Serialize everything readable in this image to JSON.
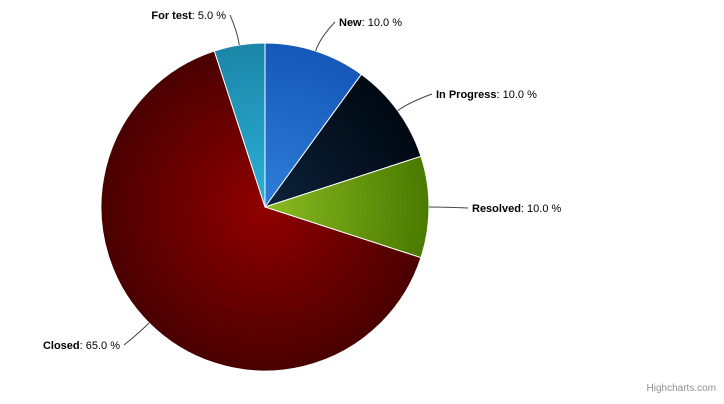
{
  "chart_data": {
    "type": "pie",
    "title": "",
    "slices": [
      {
        "name": "New",
        "value": 10.0,
        "label_value": "10.0 %",
        "color": "#2f7ed8",
        "color_dark": "#1658b8",
        "label_side": "right"
      },
      {
        "name": "In Progress",
        "value": 10.0,
        "label_value": "10.0 %",
        "color": "#0d233a",
        "color_dark": "#000812",
        "label_side": "right"
      },
      {
        "name": "Resolved",
        "value": 10.0,
        "label_value": "10.0 %",
        "color": "#8bbc21",
        "color_dark": "#4a7a00",
        "label_side": "right"
      },
      {
        "name": "Closed",
        "value": 65.0,
        "label_value": "65.0 %",
        "color": "#910000",
        "color_dark": "#4a0000",
        "label_side": "left"
      },
      {
        "name": "For test",
        "value": 5.0,
        "label_value": "5.0 %",
        "color": "#2ab1d8",
        "color_dark": "#1b86a8",
        "label_side": "left"
      }
    ],
    "start_angle_deg": 0,
    "legend": "none",
    "units": "%"
  },
  "credits": {
    "text": "Highcharts.com"
  }
}
